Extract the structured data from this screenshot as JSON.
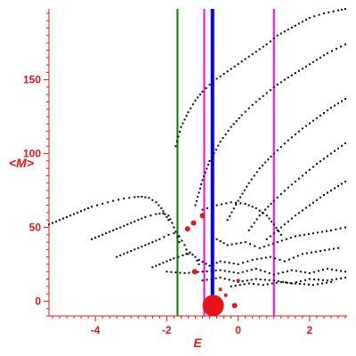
{
  "chart_data": {
    "type": "scatter",
    "title": "",
    "xlabel": "E",
    "ylabel": "<M>",
    "xlim": [
      -5.3,
      3.05
    ],
    "ylim": [
      -10,
      198
    ],
    "x_ticks": [
      -4,
      -2,
      0,
      2
    ],
    "y_ticks": [
      0,
      50,
      100,
      150
    ],
    "x_tick_labels": [
      "-4",
      "-2",
      "0",
      "2"
    ],
    "y_tick_labels": [
      "0",
      "50",
      "100",
      "150"
    ],
    "axis_color": "#e8141a",
    "point_color": "#000000",
    "grid": false,
    "vertical_lines": [
      {
        "x": -1.7,
        "color": "#007a00",
        "width": 2
      },
      {
        "x": -0.95,
        "color": "#ff00ff",
        "width": 2
      },
      {
        "x": -0.72,
        "color": "#0000ff",
        "width": 4
      },
      {
        "x": 1.0,
        "color": "#ff00ff",
        "width": 2
      }
    ],
    "series": [
      {
        "values": [
          [
            -5.3,
            52
          ],
          [
            -5.0,
            55
          ],
          [
            -4.7,
            58
          ],
          [
            -4.4,
            61
          ],
          [
            -4.1,
            64
          ],
          [
            -3.8,
            66
          ],
          [
            -3.5,
            68
          ],
          [
            -3.2,
            69.5
          ],
          [
            -2.9,
            70.5
          ],
          [
            -2.7,
            70.8
          ],
          [
            -2.5,
            70
          ],
          [
            -2.3,
            67
          ],
          [
            -2.15,
            63
          ],
          [
            -2.05,
            59
          ],
          [
            -1.95,
            55
          ]
        ]
      },
      {
        "values": [
          [
            -4.1,
            42
          ],
          [
            -3.8,
            45
          ],
          [
            -3.5,
            48
          ],
          [
            -3.2,
            51
          ],
          [
            -2.9,
            54
          ],
          [
            -2.6,
            57
          ],
          [
            -2.3,
            59
          ],
          [
            -2.1,
            59.5
          ],
          [
            -1.95,
            58
          ],
          [
            -1.85,
            53
          ],
          [
            -1.75,
            47
          ],
          [
            -1.65,
            40
          ]
        ]
      },
      {
        "values": [
          [
            -3.4,
            30
          ],
          [
            -3.1,
            33
          ],
          [
            -2.8,
            36
          ],
          [
            -2.5,
            39
          ],
          [
            -2.2,
            42
          ],
          [
            -1.95,
            45
          ],
          [
            -1.8,
            46
          ],
          [
            -1.65,
            44
          ],
          [
            -1.5,
            38
          ],
          [
            -1.4,
            32
          ]
        ]
      },
      {
        "values": [
          [
            -2.4,
            23
          ],
          [
            -2.1,
            26
          ],
          [
            -1.8,
            29
          ],
          [
            -1.55,
            31
          ],
          [
            -1.35,
            33
          ],
          [
            -1.2,
            30
          ],
          [
            -1.1,
            25
          ]
        ]
      },
      {
        "values": [
          [
            -1.75,
            105
          ],
          [
            -1.6,
            118
          ],
          [
            -1.4,
            128
          ],
          [
            -1.2,
            136
          ],
          [
            -1.0,
            142
          ],
          [
            -0.7,
            149
          ],
          [
            -0.4,
            154
          ],
          [
            -0.1,
            159
          ],
          [
            0.2,
            164
          ],
          [
            0.5,
            169
          ],
          [
            0.8,
            174
          ],
          [
            1.1,
            180
          ],
          [
            1.4,
            184
          ],
          [
            1.7,
            188
          ],
          [
            2.0,
            192
          ],
          [
            2.4,
            195
          ],
          [
            2.8,
            197
          ],
          [
            3.0,
            198
          ]
        ]
      },
      {
        "values": [
          [
            -1.2,
            65
          ],
          [
            -1.0,
            82
          ],
          [
            -0.8,
            95
          ],
          [
            -0.5,
            108
          ],
          [
            -0.2,
            118
          ],
          [
            0.1,
            126
          ],
          [
            0.4,
            133
          ],
          [
            0.7,
            139
          ],
          [
            1.0,
            145
          ],
          [
            1.3,
            150
          ],
          [
            1.7,
            156
          ],
          [
            2.1,
            162
          ],
          [
            2.5,
            168
          ],
          [
            3.0,
            174
          ]
        ]
      },
      {
        "values": [
          [
            -0.3,
            55
          ],
          [
            0.0,
            68
          ],
          [
            0.3,
            80
          ],
          [
            0.6,
            90
          ],
          [
            1.0,
            100
          ],
          [
            1.4,
            109
          ],
          [
            1.8,
            117
          ],
          [
            2.2,
            124
          ],
          [
            2.6,
            131
          ],
          [
            3.0,
            137
          ]
        ]
      },
      {
        "values": [
          [
            0.3,
            48
          ],
          [
            0.6,
            58
          ],
          [
            1.0,
            68
          ],
          [
            1.4,
            77
          ],
          [
            1.8,
            85
          ],
          [
            2.2,
            93
          ],
          [
            2.6,
            100
          ],
          [
            3.0,
            107
          ]
        ]
      },
      {
        "values": [
          [
            0.8,
            42
          ],
          [
            1.2,
            50
          ],
          [
            1.6,
            58
          ],
          [
            2.0,
            65
          ],
          [
            2.4,
            72
          ],
          [
            2.8,
            78
          ],
          [
            3.0,
            81
          ]
        ]
      },
      {
        "values": [
          [
            -1.0,
            62
          ],
          [
            -0.6,
            65
          ],
          [
            -0.2,
            67
          ],
          [
            0.2,
            66
          ],
          [
            0.5,
            63
          ],
          [
            0.8,
            58
          ],
          [
            1.0,
            52
          ],
          [
            1.2,
            45
          ]
        ]
      },
      {
        "values": [
          [
            -2.0,
            20
          ],
          [
            -1.5,
            19
          ],
          [
            -1.0,
            20
          ],
          [
            -0.5,
            21
          ],
          [
            0.0,
            19
          ],
          [
            0.5,
            22
          ],
          [
            1.0,
            18
          ],
          [
            1.5,
            21
          ],
          [
            2.0,
            19
          ],
          [
            2.5,
            22
          ],
          [
            3.0,
            20
          ]
        ]
      },
      {
        "values": [
          [
            -1.0,
            14
          ],
          [
            -0.5,
            16
          ],
          [
            0.0,
            13
          ],
          [
            0.5,
            15
          ],
          [
            1.0,
            14
          ],
          [
            1.5,
            12
          ],
          [
            2.0,
            15
          ],
          [
            2.5,
            14
          ],
          [
            3.0,
            16
          ]
        ]
      },
      {
        "values": [
          [
            -0.2,
            10
          ],
          [
            0.3,
            12
          ],
          [
            0.7,
            11
          ],
          [
            1.2,
            13
          ],
          [
            1.6,
            12
          ],
          [
            2.1,
            11
          ],
          [
            2.6,
            13
          ]
        ]
      },
      {
        "values": [
          [
            -1.1,
            28
          ],
          [
            -0.8,
            24
          ],
          [
            -0.5,
            27
          ],
          [
            0.0,
            25
          ],
          [
            0.4,
            28
          ],
          [
            0.9,
            30
          ],
          [
            1.3,
            27
          ],
          [
            1.8,
            32
          ],
          [
            2.3,
            34
          ],
          [
            2.8,
            36
          ]
        ]
      },
      {
        "values": [
          [
            -0.6,
            42
          ],
          [
            -0.3,
            38
          ],
          [
            0.2,
            40
          ],
          [
            0.6,
            36
          ],
          [
            1.1,
            40
          ],
          [
            1.6,
            44
          ],
          [
            2.1,
            46
          ],
          [
            2.6,
            48
          ],
          [
            3.0,
            50
          ]
        ]
      }
    ],
    "highlight_points": [
      {
        "x": -1.0,
        "y": 58,
        "size": 3
      },
      {
        "x": -1.25,
        "y": 53,
        "size": 3
      },
      {
        "x": -1.42,
        "y": 49,
        "size": 3
      },
      {
        "x": -1.22,
        "y": 20,
        "size": 3
      },
      {
        "x": -0.5,
        "y": 8,
        "size": 2
      },
      {
        "x": -0.35,
        "y": 4,
        "size": 2
      },
      {
        "x": -0.1,
        "y": -3,
        "size": 3
      },
      {
        "x": 0.0,
        "y": 14,
        "size": 2
      },
      {
        "x": -0.7,
        "y": -3,
        "size": 12
      }
    ],
    "highlight_color": "#e8141a"
  }
}
